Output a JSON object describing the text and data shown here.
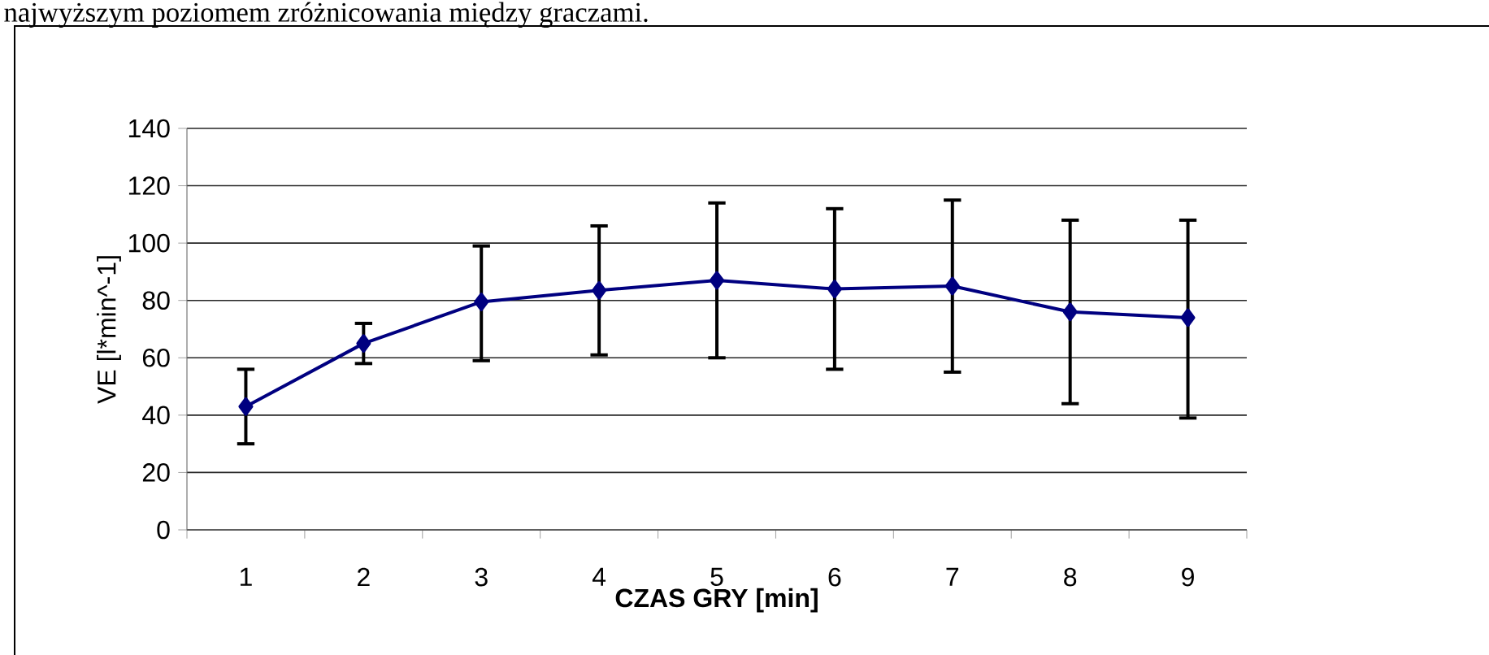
{
  "chart_data": {
    "type": "line",
    "annotations": [
      "najwyższym poziomem zróżnicowania między graczami."
    ],
    "xlabel": "CZAS GRY [min]",
    "ylabel": "VE [l*min^-1]",
    "categories": [
      "1",
      "2",
      "3",
      "4",
      "5",
      "6",
      "7",
      "8",
      "9"
    ],
    "series": [
      {
        "color": "#000080",
        "values": [
          43,
          65,
          79.5,
          83.5,
          87,
          84,
          85,
          76,
          74
        ],
        "errors": [
          [
            30,
            56
          ],
          [
            58,
            72
          ],
          [
            59,
            99
          ],
          [
            61,
            106
          ],
          [
            60,
            114
          ],
          [
            56,
            112
          ],
          [
            55,
            115
          ],
          [
            44,
            108
          ],
          [
            39,
            108
          ]
        ]
      }
    ],
    "ylim": [
      0,
      140
    ],
    "yticks": [
      0,
      20,
      40,
      60,
      80,
      100,
      120,
      140
    ],
    "grid": "y",
    "marker": "diamond",
    "line_style": "solid"
  }
}
